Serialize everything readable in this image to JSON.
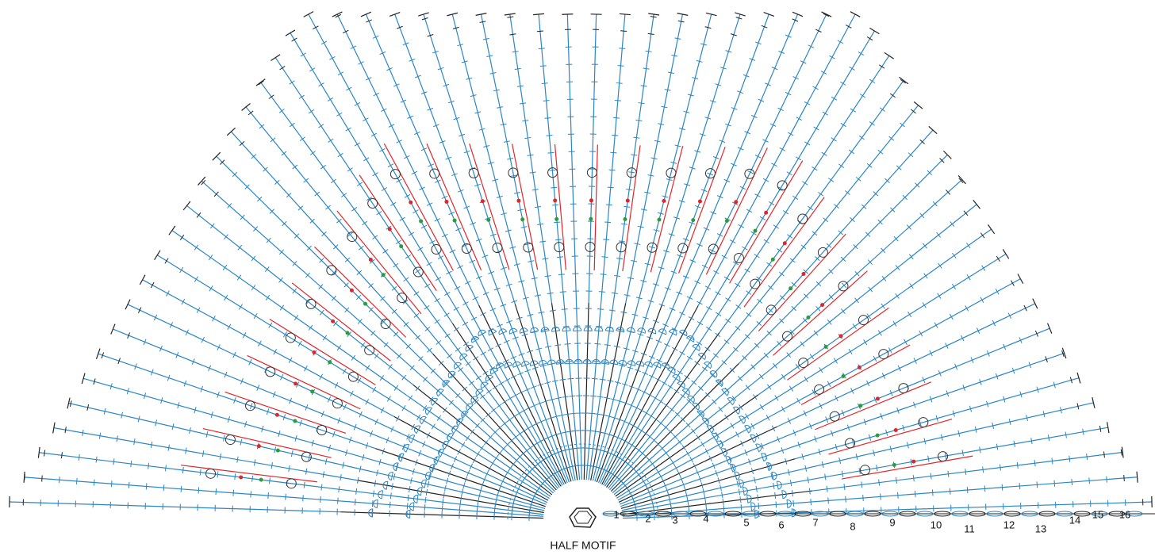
{
  "caption": "HALF MOTIF",
  "row_numbers": [
    "1",
    "2",
    "3",
    "4",
    "5",
    "6",
    "7",
    "8",
    "9",
    "10",
    "11",
    "12",
    "13",
    "14",
    "15",
    "16"
  ]
}
